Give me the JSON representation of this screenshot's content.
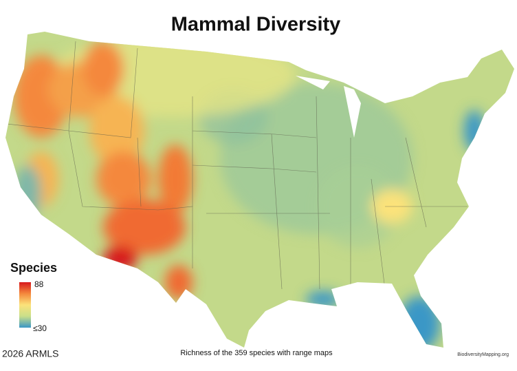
{
  "title": "Mammal Diversity",
  "legend": {
    "title": "Species",
    "high": "88",
    "low": "≤30",
    "colors": [
      "#d7191c",
      "#f4883c",
      "#fbe27a",
      "#c9df8a",
      "#3b97c6"
    ]
  },
  "caption": "Richness of the 359 species with range maps",
  "credit": "BiodiversityMapping.org",
  "watermark": "2026 ARMLS"
}
